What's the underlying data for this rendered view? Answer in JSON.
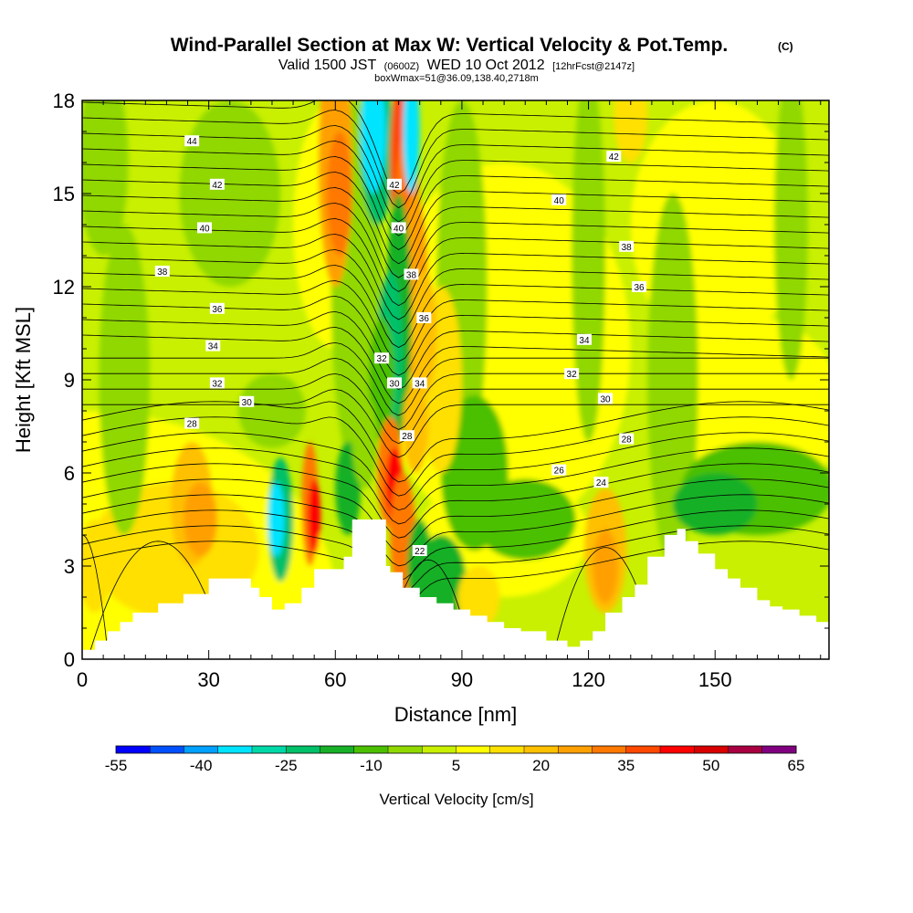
{
  "title": "Wind-Parallel Section at Max W: Vertical Velocity & Pot.Temp.",
  "title_mark": "(C)",
  "subtitle": {
    "part1": "Valid 1500 JST",
    "part2": "(0600Z)",
    "part3": "WED 10 Oct 2012",
    "part4": "[12hrFcst@2147z]"
  },
  "subtitle2": "boxWmax=51@36.09,138.40,2718m",
  "chart_data": {
    "type": "heatmap",
    "xlabel": "Distance [nm]",
    "ylabel": "Height [Kft MSL]",
    "xlim": [
      0,
      177
    ],
    "ylim": [
      0,
      18
    ],
    "x_ticks": [
      "0",
      "30",
      "60",
      "90",
      "120",
      "150"
    ],
    "y_ticks": [
      "0",
      "3",
      "6",
      "9",
      "12",
      "15",
      "18"
    ],
    "x_tick_values": [
      0,
      30,
      60,
      90,
      120,
      150
    ],
    "y_tick_values": [
      0,
      3,
      6,
      9,
      12,
      15,
      18
    ],
    "colorbar": {
      "title": "Vertical Velocity [cm/s]",
      "labels": [
        "-55",
        "-40",
        "-25",
        "-10",
        "5",
        "20",
        "35",
        "50",
        "65"
      ],
      "colors": [
        "#0000ff",
        "#0050ff",
        "#00a0ff",
        "#00e4ff",
        "#00d8a8",
        "#00c068",
        "#18b028",
        "#4cc000",
        "#90d800",
        "#c8f000",
        "#ffff00",
        "#ffe000",
        "#ffc000",
        "#ffa000",
        "#ff7800",
        "#ff4800",
        "#ff0000",
        "#d80000",
        "#a80040",
        "#800080"
      ]
    },
    "terrain_kft": [
      [
        0,
        0.3
      ],
      [
        3,
        0.6
      ],
      [
        6,
        0.9
      ],
      [
        9,
        1.2
      ],
      [
        12,
        1.5
      ],
      [
        18,
        1.8
      ],
      [
        24,
        2.1
      ],
      [
        30,
        2.6
      ],
      [
        36,
        2.6
      ],
      [
        40,
        2.3
      ],
      [
        42,
        2.0
      ],
      [
        45,
        1.6
      ],
      [
        48,
        1.8
      ],
      [
        52,
        2.3
      ],
      [
        55,
        2.9
      ],
      [
        58,
        2.9
      ],
      [
        62,
        3.3
      ],
      [
        64,
        4.5
      ],
      [
        69,
        4.5
      ],
      [
        72,
        3.0
      ],
      [
        73,
        2.8
      ],
      [
        76,
        2.3
      ],
      [
        80,
        2.0
      ],
      [
        84,
        1.8
      ],
      [
        88,
        1.6
      ],
      [
        92,
        1.4
      ],
      [
        96,
        1.2
      ],
      [
        100,
        1.0
      ],
      [
        104,
        0.9
      ],
      [
        110,
        0.6
      ],
      [
        115,
        0.4
      ],
      [
        118,
        0.6
      ],
      [
        121,
        0.9
      ],
      [
        124,
        1.5
      ],
      [
        128,
        2.0
      ],
      [
        131,
        2.4
      ],
      [
        134,
        3.3
      ],
      [
        138,
        4.0
      ],
      [
        141,
        4.2
      ],
      [
        143,
        3.8
      ],
      [
        146,
        3.4
      ],
      [
        150,
        2.9
      ],
      [
        153,
        2.6
      ],
      [
        156,
        2.3
      ],
      [
        160,
        1.9
      ],
      [
        163,
        1.7
      ],
      [
        166,
        1.6
      ],
      [
        170,
        1.4
      ],
      [
        174,
        1.2
      ],
      [
        177,
        1.0
      ]
    ],
    "theta_contour_labels": [
      {
        "value": "44",
        "x": 26,
        "y": 16.7
      },
      {
        "value": "42",
        "x": 32,
        "y": 15.3
      },
      {
        "value": "40",
        "x": 29,
        "y": 13.9
      },
      {
        "value": "38",
        "x": 19,
        "y": 12.5
      },
      {
        "value": "36",
        "x": 32,
        "y": 11.3
      },
      {
        "value": "34",
        "x": 31,
        "y": 10.1
      },
      {
        "value": "32",
        "x": 32,
        "y": 8.9
      },
      {
        "value": "30",
        "x": 39,
        "y": 8.3
      },
      {
        "value": "28",
        "x": 26,
        "y": 7.6
      },
      {
        "value": "42",
        "x": 74,
        "y": 15.3
      },
      {
        "value": "40",
        "x": 75,
        "y": 13.9
      },
      {
        "value": "38",
        "x": 78,
        "y": 12.4
      },
      {
        "value": "36",
        "x": 81,
        "y": 11.0
      },
      {
        "value": "32",
        "x": 71,
        "y": 9.7
      },
      {
        "value": "30",
        "x": 74,
        "y": 8.9
      },
      {
        "value": "34",
        "x": 80,
        "y": 8.9
      },
      {
        "value": "28",
        "x": 77,
        "y": 7.2
      },
      {
        "value": "22",
        "x": 80,
        "y": 3.5
      },
      {
        "value": "42",
        "x": 126,
        "y": 16.2
      },
      {
        "value": "40",
        "x": 113,
        "y": 14.8
      },
      {
        "value": "38",
        "x": 129,
        "y": 13.3
      },
      {
        "value": "36",
        "x": 132,
        "y": 12.0
      },
      {
        "value": "34",
        "x": 119,
        "y": 10.3
      },
      {
        "value": "32",
        "x": 116,
        "y": 9.2
      },
      {
        "value": "30",
        "x": 124,
        "y": 8.4
      },
      {
        "value": "28",
        "x": 129,
        "y": 7.1
      },
      {
        "value": "26",
        "x": 113,
        "y": 6.1
      },
      {
        "value": "24",
        "x": 123,
        "y": 5.7
      }
    ]
  }
}
